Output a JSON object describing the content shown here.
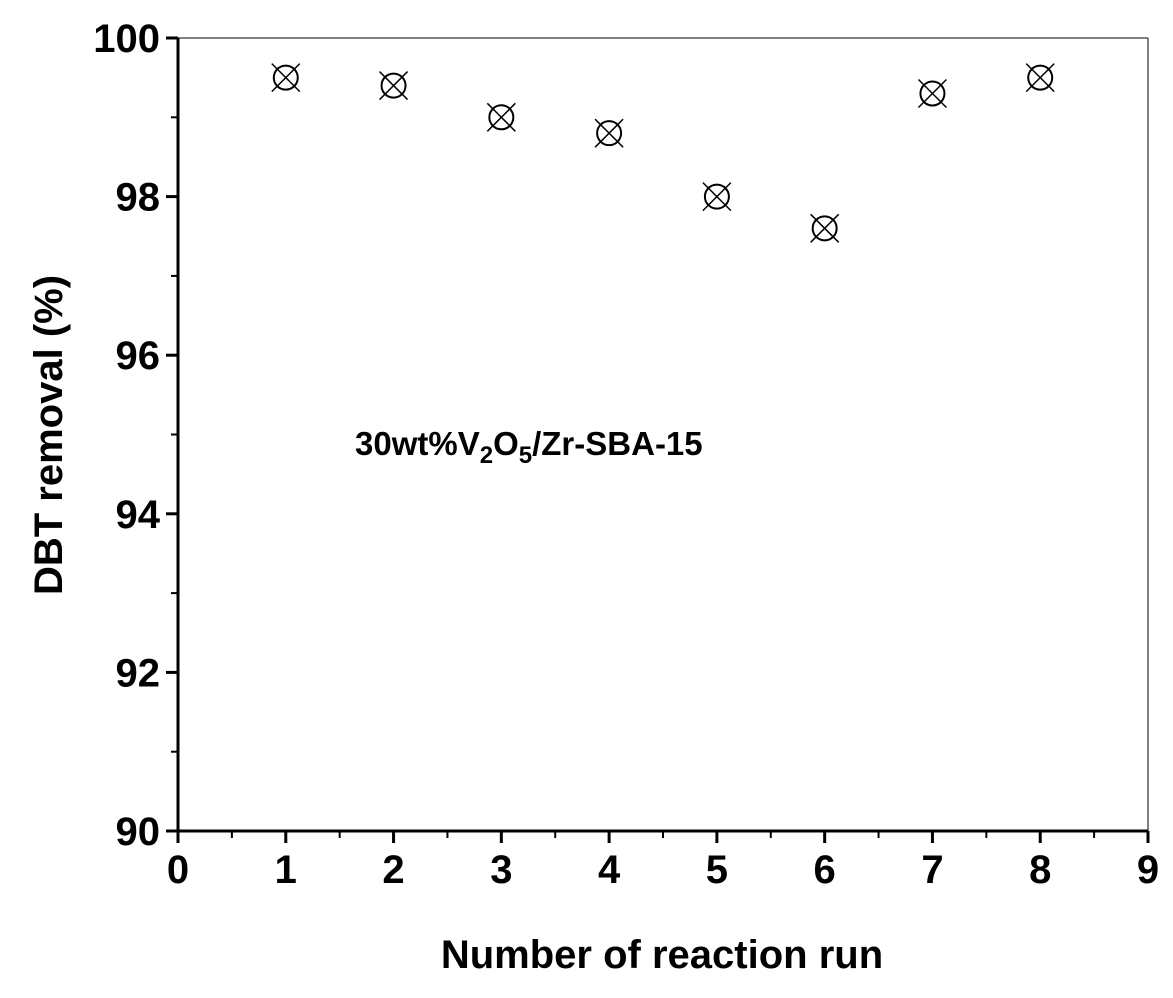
{
  "chart_data": {
    "type": "scatter",
    "xlabel": "Number of reaction run",
    "ylabel": "DBT removal (%)",
    "xlim": [
      0,
      9
    ],
    "ylim": [
      90,
      100
    ],
    "x_ticks": [
      "0",
      "1",
      "2",
      "3",
      "4",
      "5",
      "6",
      "7",
      "8",
      "9"
    ],
    "y_ticks": [
      "90",
      "92",
      "94",
      "96",
      "98",
      "100"
    ],
    "grid": false,
    "annotation": {
      "parts": [
        "30wt%V",
        "2",
        "O",
        "5",
        "/Zr-SBA-15"
      ]
    },
    "series": [
      {
        "marker": "circle-with-x",
        "color": "#000000",
        "x": [
          1,
          2,
          3,
          4,
          5,
          6,
          7,
          8
        ],
        "y": [
          99.5,
          99.4,
          99.0,
          98.8,
          98.0,
          97.6,
          99.3,
          99.5
        ]
      }
    ]
  }
}
